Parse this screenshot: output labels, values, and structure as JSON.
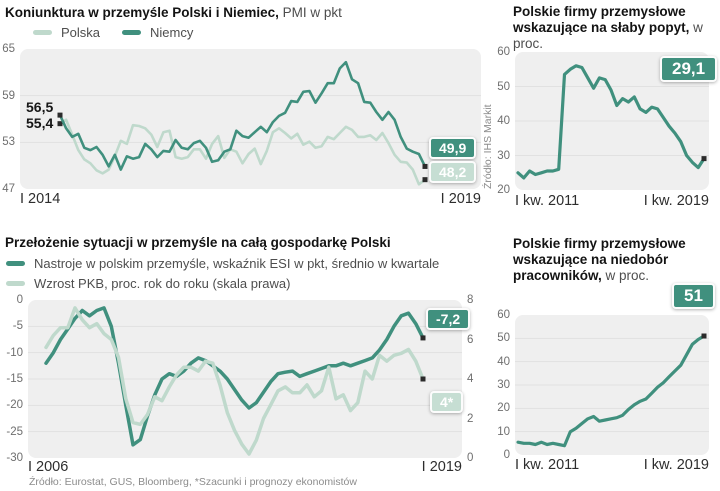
{
  "colors": {
    "dark": "#40907E",
    "light": "#BFD9CC",
    "grid": "#E1E1E1",
    "marker": "#2B2B2B"
  },
  "panels": {
    "top_left": {
      "title_bold": "Koniunktura w przemyśle Polski i Niemiec,",
      "title_normal": " PMI w pkt",
      "legend": [
        {
          "label": "Polska",
          "color": "light"
        },
        {
          "label": "Niemcy",
          "color": "dark"
        }
      ],
      "start_label_top": "56,5",
      "start_label_bottom": "55,4",
      "badge_dark": "49,9",
      "badge_light": "48,2",
      "x_start": "I 2014",
      "x_end": "I 2019",
      "source_vertical": "Źródło:  IHS Markit"
    },
    "top_right": {
      "title_bold": "Polskie firmy przemysłowe wskazujące na słaby popyt,",
      "title_normal": " w proc.",
      "badge": "29,1",
      "x_start": "I kw. 2011",
      "x_end": "I kw. 2019"
    },
    "bottom_left": {
      "title_bold": "Przełożenie sytuacji w przemyśle na całą gospodarkę Polski",
      "legend": [
        {
          "label": "Nastroje w polskim przemyśle, wskaźnik ESI w pkt, średnio w kwartale",
          "color": "dark"
        },
        {
          "label": "Wzrost PKB, proc. rok do roku (skala prawa)",
          "color": "light"
        }
      ],
      "badge_dark": "-7,2",
      "badge_light": "4*",
      "x_start": "I 2006",
      "x_end": "I 2019"
    },
    "bottom_right": {
      "title_bold": "Polskie firmy przemysłowe wskazujące na niedobór pracowników,",
      "title_normal": " w proc.",
      "badge": "51",
      "x_start": "I kw. 2011",
      "x_end": "I kw. 2019"
    },
    "footer_source": "Źródło: Eurostat, GUS, Bloomberg, *Szacunki i prognozy ekonomistów"
  },
  "chart_data": [
    {
      "id": "pmi",
      "type": "line",
      "title": "Koniunktura w przemyśle Polski i Niemiec, PMI w pkt",
      "x_start": "I 2014",
      "x_end": "I 2019",
      "x_frequency": "monthly",
      "ylim": [
        47,
        65
      ],
      "yticks": [
        65,
        59,
        53,
        47
      ],
      "x_pad": [
        40,
        56
      ],
      "grid": true,
      "series": [
        {
          "name": "Polska",
          "color": "light",
          "axis": "left",
          "width": 2.6,
          "start_marker": true,
          "end_marker": true,
          "values": [
            55.4,
            55.9,
            54.0,
            52.0,
            50.8,
            50.3,
            49.4,
            49.0,
            49.5,
            51.2,
            53.2,
            52.8,
            55.2,
            55.1,
            54.8,
            54.0,
            52.4,
            54.3,
            54.5,
            51.1,
            50.9,
            51.1,
            52.1,
            52.1,
            50.9,
            52.8,
            53.8,
            51.0,
            52.1,
            51.8,
            50.3,
            51.5,
            52.2,
            50.2,
            51.9,
            54.3,
            54.8,
            54.2,
            53.5,
            54.1,
            52.7,
            53.1,
            52.3,
            52.5,
            53.7,
            53.4,
            54.2,
            55.0,
            54.6,
            53.7,
            53.7,
            53.9,
            53.3,
            54.2,
            52.9,
            51.4,
            50.5,
            50.4,
            49.5,
            47.6,
            48.2
          ]
        },
        {
          "name": "Niemcy",
          "color": "dark",
          "axis": "left",
          "width": 2.6,
          "start_marker": true,
          "end_marker": true,
          "values": [
            56.5,
            54.8,
            53.7,
            54.1,
            52.3,
            52.0,
            52.4,
            51.4,
            49.9,
            51.4,
            49.5,
            51.2,
            50.9,
            51.1,
            52.8,
            52.1,
            51.1,
            51.9,
            51.8,
            53.3,
            52.3,
            52.1,
            52.9,
            53.2,
            52.3,
            50.5,
            50.7,
            51.8,
            52.1,
            54.5,
            53.8,
            53.6,
            54.3,
            55.0,
            54.3,
            55.6,
            56.4,
            56.8,
            58.3,
            58.2,
            59.5,
            59.6,
            58.1,
            59.3,
            60.6,
            60.6,
            62.5,
            63.3,
            61.1,
            60.6,
            58.2,
            58.1,
            56.9,
            55.9,
            56.9,
            55.9,
            53.7,
            52.2,
            51.8,
            51.5,
            49.9
          ]
        }
      ]
    },
    {
      "id": "slaby_popyt",
      "type": "line",
      "title": "Polskie firmy przemysłowe wskazujące na słaby popyt, w proc.",
      "x_start": "I kw. 2011",
      "x_end": "I kw. 2019",
      "x_frequency": "quarterly",
      "ylim": [
        20,
        60
      ],
      "yticks": [
        60,
        50,
        40,
        30,
        20
      ],
      "x_pad": [
        3,
        5
      ],
      "grid": true,
      "series": [
        {
          "name": "Firmy wskazujące na słaby popyt",
          "color": "dark",
          "axis": "left",
          "width": 3.2,
          "end_marker": true,
          "values": [
            25,
            23.5,
            25.5,
            24.5,
            25,
            25.5,
            25.5,
            26,
            53.5,
            55,
            56,
            55.5,
            52.5,
            49.5,
            52.5,
            52,
            49,
            44.5,
            46.5,
            45.5,
            47,
            43.5,
            42.5,
            44,
            43.5,
            41,
            38.5,
            36.5,
            34,
            30,
            28,
            26.5,
            29.1
          ]
        }
      ]
    },
    {
      "id": "esi_pkb",
      "type": "line",
      "title": "Przełożenie sytuacji w przemyśle na całą gospodarkę Polski",
      "x_start": "I 2006",
      "x_end": "I 2019",
      "x_frequency": "quarterly",
      "ylim": [
        -30,
        0
      ],
      "yticks": [
        0,
        -5,
        -10,
        -15,
        -20,
        -25,
        -30
      ],
      "ylim_right": [
        0,
        8
      ],
      "yticks_right": [
        8,
        6,
        4,
        2,
        0
      ],
      "x_pad": [
        18,
        39
      ],
      "grid": true,
      "series": [
        {
          "name": "Nastroje w polskim przemyśle (ESI, pkt)",
          "color": "dark",
          "axis": "left",
          "width": 3.5,
          "end_marker": true,
          "values": [
            -12,
            -10,
            -7.5,
            -5.5,
            -3.5,
            -2,
            -3,
            -2,
            -1.5,
            -5,
            -12,
            -20,
            -27.5,
            -26.5,
            -22,
            -18,
            -15,
            -14,
            -14.5,
            -13.5,
            -12,
            -11,
            -11.5,
            -12.5,
            -13.5,
            -15,
            -17,
            -19,
            -20.5,
            -19.5,
            -17.5,
            -15.5,
            -14,
            -13.7,
            -13.5,
            -14.5,
            -14,
            -13.5,
            -13,
            -12.5,
            -12.5,
            -12,
            -12.5,
            -12,
            -11.5,
            -11,
            -9.5,
            -7.5,
            -5,
            -3,
            -2.5,
            -4.5,
            -7.2
          ]
        },
        {
          "name": "Wzrost PKB, proc. rok do roku (skala prawa)",
          "color": "light",
          "axis": "right",
          "width": 3.5,
          "end_marker": true,
          "values": [
            5.6,
            6.2,
            6.6,
            6.6,
            7.6,
            7.0,
            6.6,
            6.8,
            6.3,
            6.0,
            5.1,
            3.0,
            1.8,
            1.7,
            2.2,
            3.1,
            2.9,
            3.6,
            4.2,
            4.6,
            4.6,
            4.4,
            4.9,
            4.8,
            3.7,
            2.3,
            1.4,
            0.7,
            0.2,
            0.9,
            2.0,
            2.7,
            3.4,
            3.6,
            3.3,
            3.3,
            3.7,
            3.1,
            3.4,
            4.6,
            3.0,
            3.2,
            2.4,
            2.8,
            4.4,
            4.0,
            5.2,
            4.9,
            5.2,
            5.3,
            5.5,
            4.9,
            4.0
          ]
        }
      ]
    },
    {
      "id": "niedobor",
      "type": "line",
      "title": "Polskie firmy przemysłowe wskazujące na niedobór pracowników, w proc.",
      "x_start": "I kw. 2011",
      "x_end": "I kw. 2019",
      "x_frequency": "quarterly",
      "ylim": [
        0,
        60
      ],
      "yticks": [
        60,
        50,
        40,
        30,
        20,
        10,
        0
      ],
      "x_pad": [
        3,
        5
      ],
      "grid": true,
      "series": [
        {
          "name": "Firmy wskazujące na niedobór pracowników",
          "color": "dark",
          "axis": "left",
          "width": 3.2,
          "end_marker": true,
          "values": [
            5.5,
            5,
            5,
            4.5,
            5.5,
            4.5,
            5,
            4.5,
            4,
            10,
            11.5,
            13.5,
            15.5,
            16.5,
            14.5,
            15,
            15.5,
            16,
            17,
            19.5,
            21.5,
            23,
            24,
            26.5,
            29,
            31,
            33.5,
            36,
            38.5,
            43,
            47.5,
            49.5,
            51
          ]
        }
      ]
    }
  ]
}
